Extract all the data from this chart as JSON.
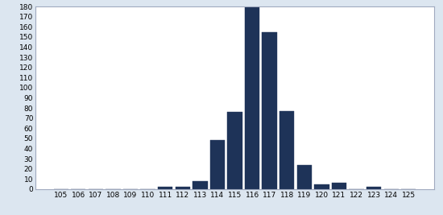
{
  "categories": [
    105,
    106,
    107,
    108,
    109,
    110,
    111,
    112,
    113,
    114,
    115,
    116,
    117,
    118,
    119,
    120,
    121,
    122,
    123,
    124,
    125
  ],
  "values": [
    0,
    0,
    0,
    0,
    0,
    0,
    2,
    2,
    8,
    48,
    76,
    180,
    155,
    77,
    24,
    5,
    6,
    0,
    2,
    0,
    0
  ],
  "bar_color": "#1e3358",
  "ylim": [
    0,
    180
  ],
  "yticks": [
    0,
    10,
    20,
    30,
    40,
    50,
    60,
    70,
    80,
    90,
    100,
    110,
    120,
    130,
    140,
    150,
    160,
    170,
    180
  ],
  "fig_background": "#dce6f0",
  "plot_background": "#ffffff",
  "bar_width": 0.85,
  "spine_color": "#a0aabf",
  "tick_fontsize": 6.5
}
